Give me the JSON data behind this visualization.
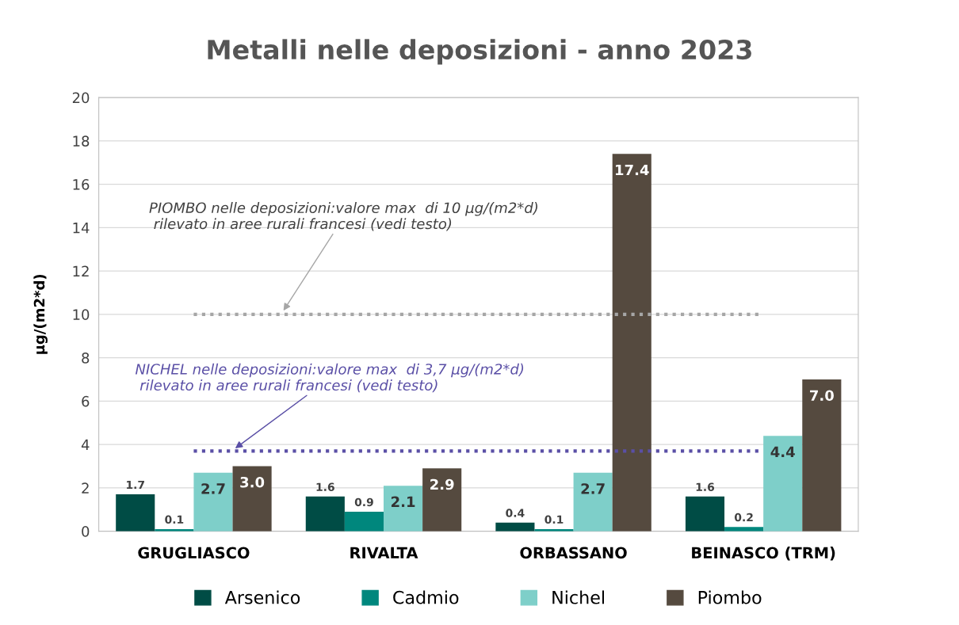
{
  "chart_data": {
    "type": "bar",
    "title": "Metalli nelle deposizioni - anno 2023",
    "ylabel": "µg/(m2*d)",
    "categories": [
      "GRUGLIASCO",
      "RIVALTA",
      "ORBASSANO",
      "BEINASCO (TRM)"
    ],
    "series": [
      {
        "name": "Arsenico",
        "color": "#004c45",
        "values": [
          1.7,
          1.6,
          0.4,
          1.6
        ],
        "value_labels": [
          "1.7",
          "1.6",
          "0.4",
          "1.6"
        ]
      },
      {
        "name": "Cadmio",
        "color": "#00877d",
        "values": [
          0.1,
          0.9,
          0.1,
          0.2
        ],
        "value_labels": [
          "0.1",
          "0.9",
          "0.1",
          "0.2"
        ]
      },
      {
        "name": "Nichel",
        "color": "#7ecfc9",
        "values": [
          2.7,
          2.1,
          2.7,
          4.4
        ],
        "value_labels": [
          "2.7",
          "2.1",
          "2.7",
          "4.4"
        ]
      },
      {
        "name": "Piombo",
        "color": "#554a3f",
        "values": [
          3.0,
          2.9,
          17.4,
          7.0
        ],
        "value_labels": [
          "3.0",
          "2.9",
          "17.4",
          "7.0"
        ]
      }
    ],
    "ylim": [
      0,
      20
    ],
    "yticks": [
      0,
      2,
      4,
      6,
      8,
      10,
      12,
      14,
      16,
      18,
      20
    ],
    "grid": "y",
    "legend": "bottom",
    "ref_lines": [
      {
        "axis": "y",
        "value": 10,
        "color": "#a6a6a6",
        "line_style": "dotted",
        "label": "PIOMBO nelle deposizioni:valore max  di 10 µg/(m2*d)\n rilevato in aree rurali francesi (vedi testo)"
      },
      {
        "axis": "y",
        "value": 3.7,
        "color": "#5a4fa6",
        "line_style": "dotted",
        "label": "NICHEL nelle deposizioni:valore max  di 3,7 µg/(m2*d)\n rilevato in aree rurali francesi (vedi testo)"
      }
    ]
  }
}
